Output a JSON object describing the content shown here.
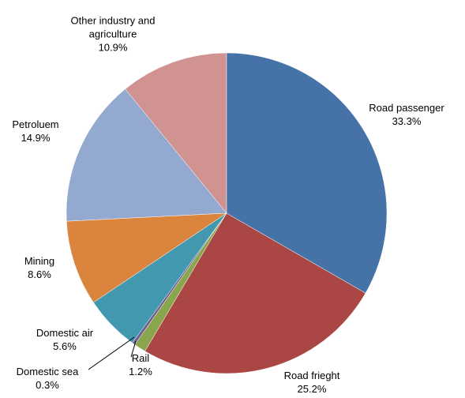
{
  "chart_data": {
    "type": "pie",
    "categories": [
      "Road passenger",
      "Road frieght",
      "Rail",
      "Domestic sea",
      "Domestic air",
      "Mining",
      "Petroluem",
      "Other industry and agriculture"
    ],
    "values": [
      33.3,
      25.2,
      1.2,
      0.3,
      5.6,
      8.6,
      14.9,
      10.9
    ],
    "value_labels": [
      "33.3%",
      "25.2%",
      "1.2%",
      "0.3%",
      "5.6%",
      "8.6%",
      "14.9%",
      "10.9%"
    ],
    "colors": [
      "#4572a7",
      "#aa4643",
      "#89a54e",
      "#71588f",
      "#4198af",
      "#db843d",
      "#93a9cf",
      "#d19392"
    ]
  }
}
